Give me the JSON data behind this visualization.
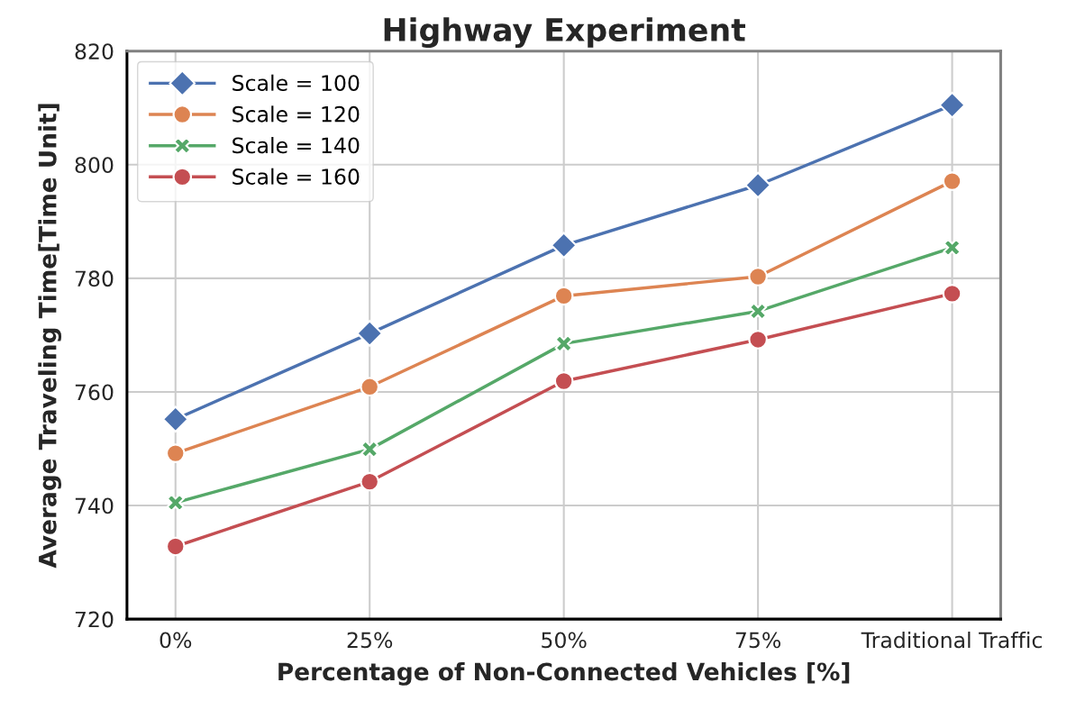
{
  "chart_data": {
    "type": "line",
    "title": "Highway Experiment",
    "xlabel": "Percentage of Non-Connected Vehicles [%]",
    "ylabel": "Average Traveling Time[Time Unit]",
    "categories": [
      "0%",
      "25%",
      "50%",
      "75%",
      "Traditional Traffic"
    ],
    "series": [
      {
        "name": "Scale = 100",
        "color": "#4c72b0",
        "marker": "diamond",
        "values": [
          755.2,
          770.3,
          785.8,
          796.4,
          810.5
        ]
      },
      {
        "name": "Scale = 120",
        "color": "#dd8452",
        "marker": "circle",
        "values": [
          749.2,
          760.9,
          776.9,
          780.3,
          797.1
        ]
      },
      {
        "name": "Scale = 140",
        "color": "#55a868",
        "marker": "cross",
        "values": [
          740.5,
          749.9,
          768.5,
          774.2,
          785.4
        ]
      },
      {
        "name": "Scale = 160",
        "color": "#c44e52",
        "marker": "circle",
        "values": [
          732.8,
          744.2,
          761.9,
          769.2,
          777.3
        ]
      }
    ],
    "ylim": [
      720,
      820
    ],
    "yticks": [
      720,
      740,
      760,
      780,
      800,
      820
    ],
    "grid": true,
    "legend": "top left",
    "line_style": "solid"
  }
}
